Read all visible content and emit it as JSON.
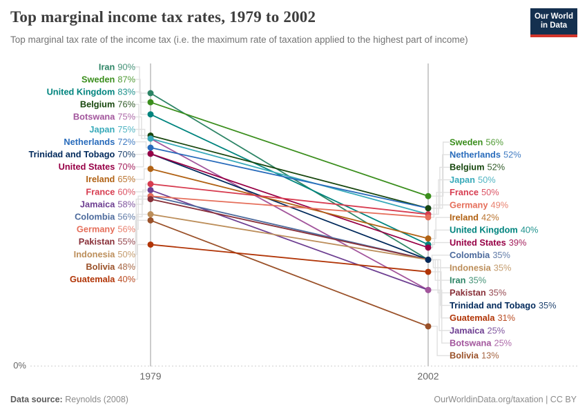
{
  "header": {
    "title": "Top marginal income tax rates, 1979 to 2002",
    "subtitle": "Top marginal tax rate of the income tax (i.e. the maximum rate of taxation applied to the highest part of income)",
    "logo": {
      "line1": "Our World",
      "line2": "in Data"
    }
  },
  "chart_data": {
    "type": "slope",
    "x_labels": [
      "1979",
      "2002"
    ],
    "y_zero_label": "0%",
    "ylim": [
      0,
      100
    ],
    "unit": "%",
    "series": [
      {
        "name": "Iran",
        "color": "#2C8465",
        "values": [
          90,
          35
        ]
      },
      {
        "name": "Sweden",
        "color": "#3B8E1D",
        "values": [
          87,
          56
        ]
      },
      {
        "name": "United Kingdom",
        "color": "#00847E",
        "values": [
          83,
          40
        ]
      },
      {
        "name": "Belgium",
        "color": "#18470F",
        "values": [
          76,
          52
        ]
      },
      {
        "name": "Botswana",
        "color": "#A2559C",
        "values": [
          75,
          25
        ]
      },
      {
        "name": "Japan",
        "color": "#38AABA",
        "values": [
          75,
          50
        ]
      },
      {
        "name": "Netherlands",
        "color": "#286BBB",
        "values": [
          72,
          52
        ]
      },
      {
        "name": "Trinidad and Tobago",
        "color": "#00295B",
        "values": [
          70,
          35
        ]
      },
      {
        "name": "United States",
        "color": "#970046",
        "values": [
          70,
          39
        ]
      },
      {
        "name": "Ireland",
        "color": "#B16214",
        "values": [
          65,
          42
        ]
      },
      {
        "name": "France",
        "color": "#D73C50",
        "values": [
          60,
          50
        ]
      },
      {
        "name": "Jamaica",
        "color": "#6D3E91",
        "values": [
          58,
          25
        ]
      },
      {
        "name": "Colombia",
        "color": "#4C6A9C",
        "values": [
          56,
          35
        ]
      },
      {
        "name": "Germany",
        "color": "#E56E5A",
        "values": [
          56,
          49
        ]
      },
      {
        "name": "Pakistan",
        "color": "#883039",
        "values": [
          55,
          35
        ]
      },
      {
        "name": "Indonesia",
        "color": "#BC8E5A",
        "values": [
          50,
          35
        ]
      },
      {
        "name": "Bolivia",
        "color": "#9A5129",
        "values": [
          48,
          13
        ]
      },
      {
        "name": "Guatemala",
        "color": "#B13507",
        "values": [
          40,
          31
        ]
      }
    ],
    "right_label_order": [
      "Sweden",
      "Netherlands",
      "Belgium",
      "Japan",
      "France",
      "Germany",
      "Ireland",
      "United Kingdom",
      "United States",
      "Colombia",
      "Indonesia",
      "Iran",
      "Pakistan",
      "Trinidad and Tobago",
      "Guatemala",
      "Jamaica",
      "Botswana",
      "Bolivia"
    ]
  },
  "footer": {
    "datasource_label": "Data source:",
    "datasource_value": "Reynolds (2008)",
    "attribution": "OurWorldinData.org/taxation | CC BY"
  }
}
